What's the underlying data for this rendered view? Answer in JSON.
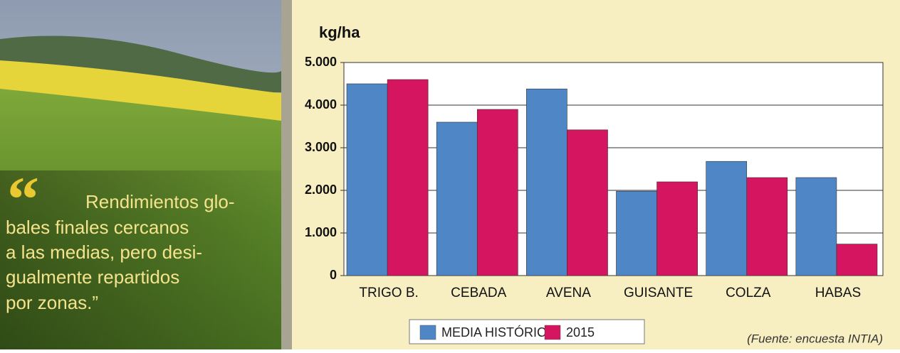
{
  "quote": {
    "mark": "“",
    "lines": [
      "Rendimientos glo-",
      "bales finales cercanos",
      "a las medias, pero desi-",
      "gualmente repartidos",
      "por zonas.”"
    ]
  },
  "chart_data": {
    "type": "bar",
    "y_label": "kg/ha",
    "source": "(Fuente: encuesta INTIA)",
    "categories": [
      "TRIGO B.",
      "CEBADA",
      "AVENA",
      "GUISANTE",
      "COLZA",
      "HABAS"
    ],
    "series": [
      {
        "name": "MEDIA HISTÓRICA",
        "color": "#4f86c6",
        "values": [
          4500,
          3600,
          4380,
          1980,
          2680,
          2300
        ]
      },
      {
        "name": "2015",
        "color": "#d5155f",
        "values": [
          4600,
          3900,
          3420,
          2200,
          2300,
          740
        ]
      }
    ],
    "ylim": [
      0,
      5000
    ],
    "yticks": [
      0,
      {
        "value": 1000,
        "label": "1.000"
      },
      {
        "value": 2000,
        "label": "2.000"
      },
      {
        "value": 3000,
        "label": "3.000"
      },
      {
        "value": 4000,
        "label": "4.000"
      },
      {
        "value": 5000,
        "label": "5.000"
      }
    ],
    "grid": true
  }
}
